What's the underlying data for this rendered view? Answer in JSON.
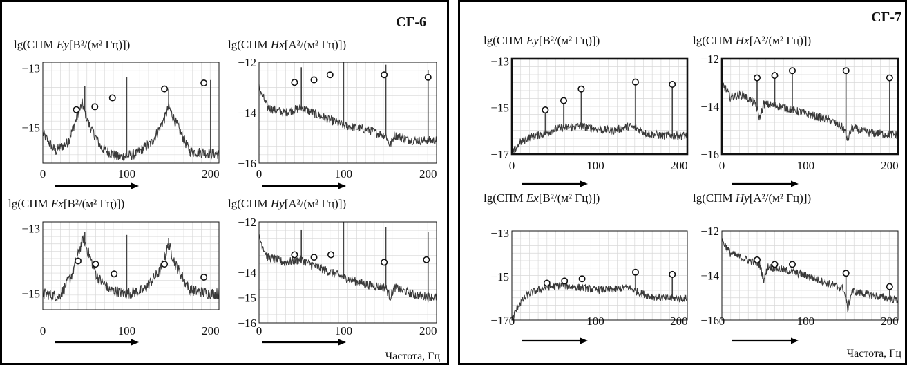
{
  "groups": [
    {
      "label": "СГ-6",
      "xlabel": "Частота, Гц"
    },
    {
      "label": "СГ-7",
      "xlabel": "Частота, Гц"
    }
  ],
  "chart_data": [
    {
      "type": "line",
      "group": "СГ-6",
      "title": "lg(СПМ Ey[B²/(м² Гц)])",
      "title_pre": "lg(СПМ ",
      "title_var": "Ey",
      "title_unit": "[B²/(м² Гц)])",
      "xticks": [
        0,
        100,
        200
      ],
      "yticks": [
        -13,
        -15
      ],
      "xlim": [
        0,
        210
      ],
      "ylim": [
        -16.2,
        -12.8
      ],
      "baseline": -16.0,
      "shape": [
        [
          0,
          -15.2
        ],
        [
          15,
          -15.8
        ],
        [
          30,
          -15.5
        ],
        [
          40,
          -14.7
        ],
        [
          47,
          -14.2
        ],
        [
          55,
          -14.9
        ],
        [
          70,
          -15.7
        ],
        [
          90,
          -16.0
        ],
        [
          110,
          -15.9
        ],
        [
          130,
          -15.5
        ],
        [
          145,
          -14.7
        ],
        [
          150,
          -14.3
        ],
        [
          158,
          -14.8
        ],
        [
          175,
          -15.8
        ],
        [
          210,
          -15.9
        ]
      ],
      "lines": [
        {
          "x": 50,
          "top": -13.6
        },
        {
          "x": 100,
          "top": -13.3
        },
        {
          "x": 150,
          "top": -13.7
        },
        {
          "x": 200,
          "top": -13.4
        }
      ],
      "markers": [
        [
          40,
          -14.4
        ],
        [
          62,
          -14.3
        ],
        [
          83,
          -14.0
        ],
        [
          145,
          -13.7
        ],
        [
          192,
          -13.5
        ]
      ],
      "frame_bold": false
    },
    {
      "type": "line",
      "group": "СГ-6",
      "title": "lg(СПМ Hx[A²/(м² Гц)])",
      "title_pre": "lg(СПМ ",
      "title_var": "Hx",
      "title_unit": "[A²/(м² Гц)])",
      "xticks": [
        0,
        100,
        200
      ],
      "yticks": [
        -12,
        -14,
        -16
      ],
      "xlim": [
        0,
        210
      ],
      "ylim": [
        -16,
        -12
      ],
      "baseline": -16.0,
      "shape": [
        [
          0,
          -13.0
        ],
        [
          10,
          -13.8
        ],
        [
          30,
          -14.0
        ],
        [
          50,
          -13.8
        ],
        [
          70,
          -14.1
        ],
        [
          100,
          -14.5
        ],
        [
          130,
          -14.7
        ],
        [
          150,
          -14.9
        ],
        [
          155,
          -15.3
        ],
        [
          160,
          -14.9
        ],
        [
          180,
          -15.1
        ],
        [
          210,
          -15.1
        ]
      ],
      "lines": [
        {
          "x": 50,
          "top": -12.2
        },
        {
          "x": 100,
          "top": -12.0
        },
        {
          "x": 150,
          "top": -12.1
        },
        {
          "x": 200,
          "top": -12.3
        }
      ],
      "markers": [
        [
          42,
          -12.8
        ],
        [
          65,
          -12.7
        ],
        [
          84,
          -12.5
        ],
        [
          148,
          -12.5
        ],
        [
          200,
          -12.6
        ]
      ],
      "frame_bold": false
    },
    {
      "type": "line",
      "group": "СГ-6",
      "title": "lg(СПМ Ex[B²/(м² Гц)])",
      "title_pre": "lg(СПМ ",
      "title_var": "Ex",
      "title_unit": "[B²/(м² Гц)])",
      "xticks": [
        0,
        100,
        200
      ],
      "yticks": [
        -13,
        -15
      ],
      "xlim": [
        0,
        210
      ],
      "ylim": [
        -15.5,
        -12.8
      ],
      "baseline": -15.5,
      "shape": [
        [
          0,
          -15.0
        ],
        [
          20,
          -15.1
        ],
        [
          35,
          -14.4
        ],
        [
          48,
          -13.3
        ],
        [
          55,
          -13.8
        ],
        [
          65,
          -14.5
        ],
        [
          80,
          -14.9
        ],
        [
          100,
          -15.0
        ],
        [
          120,
          -14.9
        ],
        [
          140,
          -14.3
        ],
        [
          150,
          -13.5
        ],
        [
          158,
          -14.1
        ],
        [
          175,
          -14.9
        ],
        [
          200,
          -15.0
        ],
        [
          210,
          -15.0
        ]
      ],
      "lines": [
        {
          "x": 50,
          "top": -13.1
        },
        {
          "x": 100,
          "top": -13.2
        },
        {
          "x": 150,
          "top": -13.3
        }
      ],
      "markers": [
        [
          42,
          -14.0
        ],
        [
          63,
          -14.1
        ],
        [
          85,
          -14.4
        ],
        [
          145,
          -14.1
        ],
        [
          192,
          -14.5
        ]
      ],
      "frame_bold": false
    },
    {
      "type": "line",
      "group": "СГ-6",
      "title": "lg(СПМ Hy[A²/(м² Гц)])",
      "title_pre": "lg(СПМ ",
      "title_var": "Hy",
      "title_unit": "[A²/(м² Гц)])",
      "xticks": [
        0,
        100,
        200
      ],
      "yticks": [
        -12,
        -14,
        -15,
        -16
      ],
      "xlim": [
        0,
        210
      ],
      "ylim": [
        -16,
        -12
      ],
      "baseline": -16.0,
      "shape": [
        [
          0,
          -12.6
        ],
        [
          10,
          -13.4
        ],
        [
          30,
          -13.6
        ],
        [
          50,
          -13.5
        ],
        [
          70,
          -13.8
        ],
        [
          100,
          -14.2
        ],
        [
          130,
          -14.5
        ],
        [
          150,
          -14.6
        ],
        [
          155,
          -15.0
        ],
        [
          160,
          -14.6
        ],
        [
          185,
          -14.9
        ],
        [
          210,
          -15.0
        ]
      ],
      "lines": [
        {
          "x": 50,
          "top": -12.3
        },
        {
          "x": 100,
          "top": -12.0
        },
        {
          "x": 150,
          "top": -12.2
        },
        {
          "x": 200,
          "top": -12.4
        }
      ],
      "markers": [
        [
          42,
          -13.3
        ],
        [
          65,
          -13.4
        ],
        [
          85,
          -13.3
        ],
        [
          148,
          -13.6
        ],
        [
          198,
          -13.5
        ]
      ],
      "frame_bold": false
    },
    {
      "type": "line",
      "group": "СГ-7",
      "title": "lg(СПМ Ey[B²/(м² Гц)])",
      "title_pre": "lg(СПМ ",
      "title_var": "Ey",
      "title_unit": "[B²/(м² Гц)])",
      "xticks": [
        0,
        100,
        200
      ],
      "yticks": [
        -13,
        -15,
        -17
      ],
      "xlim": [
        0,
        210
      ],
      "ylim": [
        -17,
        -12.9
      ],
      "baseline": -17.0,
      "shape": [
        [
          0,
          -17.0
        ],
        [
          10,
          -16.5
        ],
        [
          20,
          -16.3
        ],
        [
          40,
          -16.1
        ],
        [
          55,
          -15.9
        ],
        [
          80,
          -15.8
        ],
        [
          100,
          -15.9
        ],
        [
          120,
          -16.0
        ],
        [
          140,
          -15.8
        ],
        [
          150,
          -15.9
        ],
        [
          160,
          -16.1
        ],
        [
          180,
          -16.2
        ],
        [
          210,
          -16.2
        ]
      ],
      "lines": [
        {
          "x": 40,
          "top": -15.1
        },
        {
          "x": 62,
          "top": -14.7
        },
        {
          "x": 83,
          "top": -14.2
        },
        {
          "x": 148,
          "top": -13.9
        },
        {
          "x": 192,
          "top": -14.0
        }
      ],
      "markers": [
        [
          40,
          -15.1
        ],
        [
          62,
          -14.7
        ],
        [
          83,
          -14.2
        ],
        [
          148,
          -13.9
        ],
        [
          192,
          -14.0
        ]
      ],
      "frame_bold": true
    },
    {
      "type": "line",
      "group": "СГ-7",
      "title": "lg(СПМ Hx[A²/(м² Гц)])",
      "title_pre": "lg(СПМ ",
      "title_var": "Hx",
      "title_unit": "[A²/(м² Гц)])",
      "xticks": [
        0,
        100,
        200
      ],
      "yticks": [
        -12,
        -14,
        -16
      ],
      "xlim": [
        0,
        210
      ],
      "ylim": [
        -16,
        -12
      ],
      "baseline": -16.0,
      "shape": [
        [
          0,
          -13.0
        ],
        [
          10,
          -13.6
        ],
        [
          25,
          -13.5
        ],
        [
          40,
          -13.9
        ],
        [
          45,
          -14.5
        ],
        [
          50,
          -13.9
        ],
        [
          70,
          -14.0
        ],
        [
          100,
          -14.3
        ],
        [
          130,
          -14.6
        ],
        [
          145,
          -14.9
        ],
        [
          150,
          -15.4
        ],
        [
          155,
          -14.9
        ],
        [
          175,
          -15.1
        ],
        [
          210,
          -15.2
        ]
      ],
      "lines": [
        {
          "x": 42,
          "top": -12.8
        },
        {
          "x": 63,
          "top": -12.7
        },
        {
          "x": 84,
          "top": -12.5
        },
        {
          "x": 148,
          "top": -12.5
        },
        {
          "x": 200,
          "top": -12.8
        }
      ],
      "markers": [
        [
          42,
          -12.8
        ],
        [
          63,
          -12.7
        ],
        [
          84,
          -12.5
        ],
        [
          148,
          -12.5
        ],
        [
          200,
          -12.8
        ]
      ],
      "frame_bold": true
    },
    {
      "type": "line",
      "group": "СГ-7",
      "title": "lg(СПМ Ex[B²/(м² Гц)])",
      "title_pre": "lg(СПМ ",
      "title_var": "Ex",
      "title_unit": "[B²/(м² Гц)])",
      "xticks": [
        0,
        100,
        200
      ],
      "yticks": [
        -13,
        -15,
        -17
      ],
      "xlim": [
        0,
        210
      ],
      "ylim": [
        -17,
        -12.9
      ],
      "baseline": -17.0,
      "shape": [
        [
          0,
          -17.0
        ],
        [
          8,
          -16.3
        ],
        [
          20,
          -15.8
        ],
        [
          40,
          -15.5
        ],
        [
          60,
          -15.4
        ],
        [
          80,
          -15.5
        ],
        [
          100,
          -15.6
        ],
        [
          120,
          -15.6
        ],
        [
          140,
          -15.5
        ],
        [
          150,
          -15.7
        ],
        [
          165,
          -15.9
        ],
        [
          185,
          -16.0
        ],
        [
          210,
          -16.0
        ]
      ],
      "lines": [
        {
          "x": 148,
          "top": -14.8
        },
        {
          "x": 192,
          "top": -14.9
        }
      ],
      "markers": [
        [
          42,
          -15.3
        ],
        [
          63,
          -15.2
        ],
        [
          84,
          -15.1
        ],
        [
          148,
          -14.8
        ],
        [
          192,
          -14.9
        ]
      ],
      "frame_bold": false
    },
    {
      "type": "line",
      "group": "СГ-7",
      "title": "lg(СПМ Hy[A²/(м² Гц)])",
      "title_pre": "lg(СПМ ",
      "title_var": "Hy",
      "title_unit": "[A²/(м² Гц)])",
      "xticks": [
        0,
        100,
        200
      ],
      "yticks": [
        -12,
        -14,
        -16
      ],
      "xlim": [
        0,
        210
      ],
      "ylim": [
        -16,
        -12
      ],
      "baseline": -16.0,
      "shape": [
        [
          0,
          -12.4
        ],
        [
          10,
          -13.0
        ],
        [
          30,
          -13.3
        ],
        [
          45,
          -13.5
        ],
        [
          50,
          -14.2
        ],
        [
          55,
          -13.6
        ],
        [
          80,
          -13.8
        ],
        [
          100,
          -14.0
        ],
        [
          130,
          -14.4
        ],
        [
          145,
          -14.6
        ],
        [
          150,
          -15.5
        ],
        [
          155,
          -14.7
        ],
        [
          180,
          -14.9
        ],
        [
          210,
          -15.1
        ]
      ],
      "lines": [
        {
          "x": 148,
          "top": -13.9
        },
        {
          "x": 200,
          "top": -14.5
        }
      ],
      "markers": [
        [
          42,
          -13.3
        ],
        [
          63,
          -13.5
        ],
        [
          84,
          -13.5
        ],
        [
          148,
          -13.9
        ],
        [
          200,
          -14.5
        ]
      ],
      "frame_bold": false
    }
  ]
}
